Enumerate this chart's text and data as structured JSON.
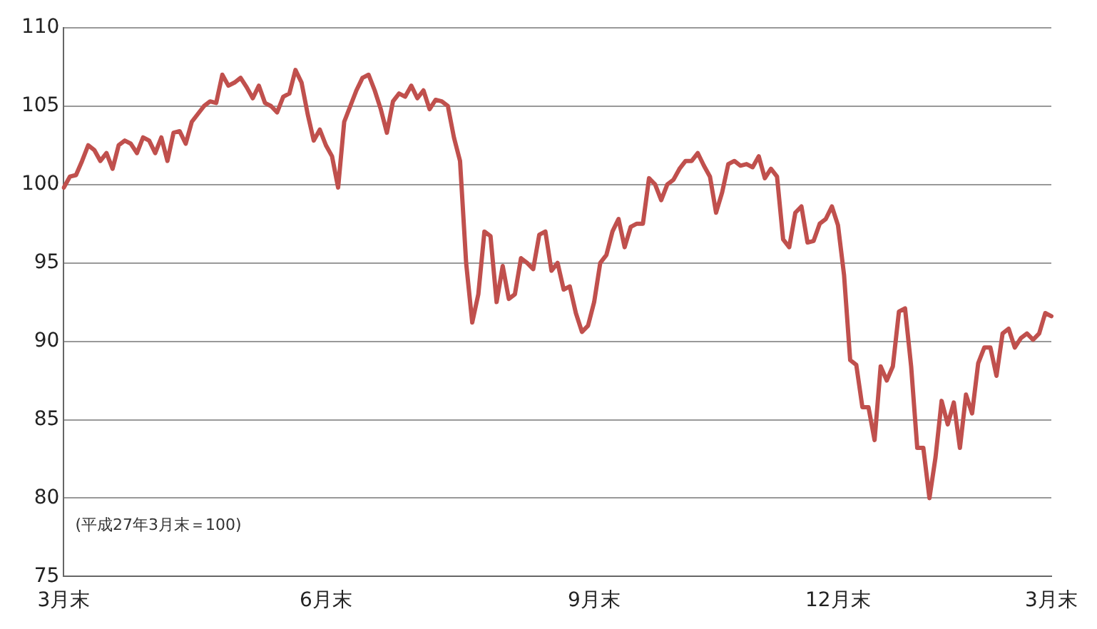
{
  "chart_data": {
    "type": "line",
    "categories": [
      "3月末",
      null,
      null,
      null,
      null,
      null,
      null,
      null,
      null,
      null,
      null,
      null,
      null,
      null,
      null,
      null,
      null,
      null,
      null,
      null,
      null,
      null,
      null,
      null,
      null,
      null,
      null,
      null,
      null,
      null,
      null,
      null,
      null,
      null,
      null,
      null,
      null,
      null,
      null,
      null,
      null,
      null,
      null,
      "6月末",
      null,
      null,
      null,
      null,
      null,
      null,
      null,
      null,
      null,
      null,
      null,
      null,
      null,
      null,
      null,
      null,
      null,
      null,
      null,
      null,
      null,
      null,
      null,
      null,
      null,
      null,
      null,
      null,
      null,
      null,
      null,
      null,
      null,
      null,
      null,
      null,
      null,
      null,
      null,
      null,
      null,
      null,
      null,
      "9月末",
      null,
      null,
      null,
      null,
      null,
      null,
      null,
      null,
      null,
      null,
      null,
      null,
      null,
      null,
      null,
      null,
      null,
      null,
      null,
      null,
      null,
      null,
      null,
      null,
      null,
      null,
      null,
      null,
      null,
      null,
      null,
      null,
      null,
      null,
      null,
      null,
      null,
      null,
      null,
      "12月末",
      null,
      null,
      null,
      null,
      null,
      null,
      null,
      null,
      null,
      null,
      null,
      null,
      null,
      null,
      null,
      null,
      null,
      null,
      null,
      null,
      null,
      null,
      null,
      null,
      null,
      null,
      null,
      null,
      null,
      null,
      null,
      null,
      null,
      null,
      "3月末"
    ],
    "series": [
      {
        "color": "#c0504d",
        "values": [
          99.8,
          100.5,
          100.6,
          101.5,
          102.5,
          102.2,
          101.5,
          102.0,
          101.0,
          102.5,
          102.8,
          102.6,
          102.0,
          103.0,
          102.8,
          102.0,
          103.0,
          101.5,
          103.3,
          103.4,
          102.6,
          104.0,
          104.5,
          105.0,
          105.3,
          105.2,
          107.0,
          106.3,
          106.5,
          106.8,
          106.2,
          105.5,
          106.3,
          105.2,
          105.0,
          104.6,
          105.6,
          105.8,
          107.3,
          106.5,
          104.5,
          102.8,
          103.5,
          102.5,
          101.8,
          99.8,
          104.0,
          105.0,
          106.0,
          106.8,
          107.0,
          106.0,
          104.8,
          103.3,
          105.3,
          105.8,
          105.6,
          106.3,
          105.5,
          106.0,
          104.8,
          105.4,
          105.3,
          105.0,
          103.0,
          101.5,
          95.0,
          91.2,
          93.0,
          97.0,
          96.7,
          92.5,
          94.8,
          92.7,
          93.0,
          95.3,
          95.0,
          94.6,
          96.8,
          97.0,
          94.5,
          95.0,
          93.3,
          93.5,
          91.8,
          90.6,
          91.0,
          92.5,
          95.0,
          95.5,
          97.0,
          97.8,
          96.0,
          97.3,
          97.5,
          97.5,
          100.4,
          100.0,
          99.0,
          100.0,
          100.3,
          101.0,
          101.5,
          101.5,
          102.0,
          101.2,
          100.5,
          98.2,
          99.5,
          101.3,
          101.5,
          101.2,
          101.3,
          101.1,
          101.8,
          100.4,
          101.0,
          100.5,
          96.5,
          96.0,
          98.2,
          98.6,
          96.3,
          96.4,
          97.5,
          97.8,
          98.6,
          97.4,
          94.2,
          88.8,
          88.5,
          85.8,
          85.8,
          83.7,
          88.4,
          87.5,
          88.4,
          91.9,
          92.1,
          88.4,
          83.2,
          83.2,
          80.0,
          82.6,
          86.2,
          84.7,
          86.1,
          83.2,
          86.6,
          85.4,
          88.6,
          89.6,
          89.6,
          87.8,
          90.5,
          90.8,
          89.6,
          90.2,
          90.5,
          90.1,
          90.5,
          91.8,
          91.6
        ]
      }
    ],
    "ylim": [
      75,
      110
    ],
    "yticks": [
      75,
      80,
      85,
      90,
      95,
      100,
      105,
      110
    ],
    "grid": "y",
    "legend": false,
    "marker": "none",
    "line_style": "solid",
    "annotations": [
      "(平成27年3月末＝100)"
    ]
  }
}
